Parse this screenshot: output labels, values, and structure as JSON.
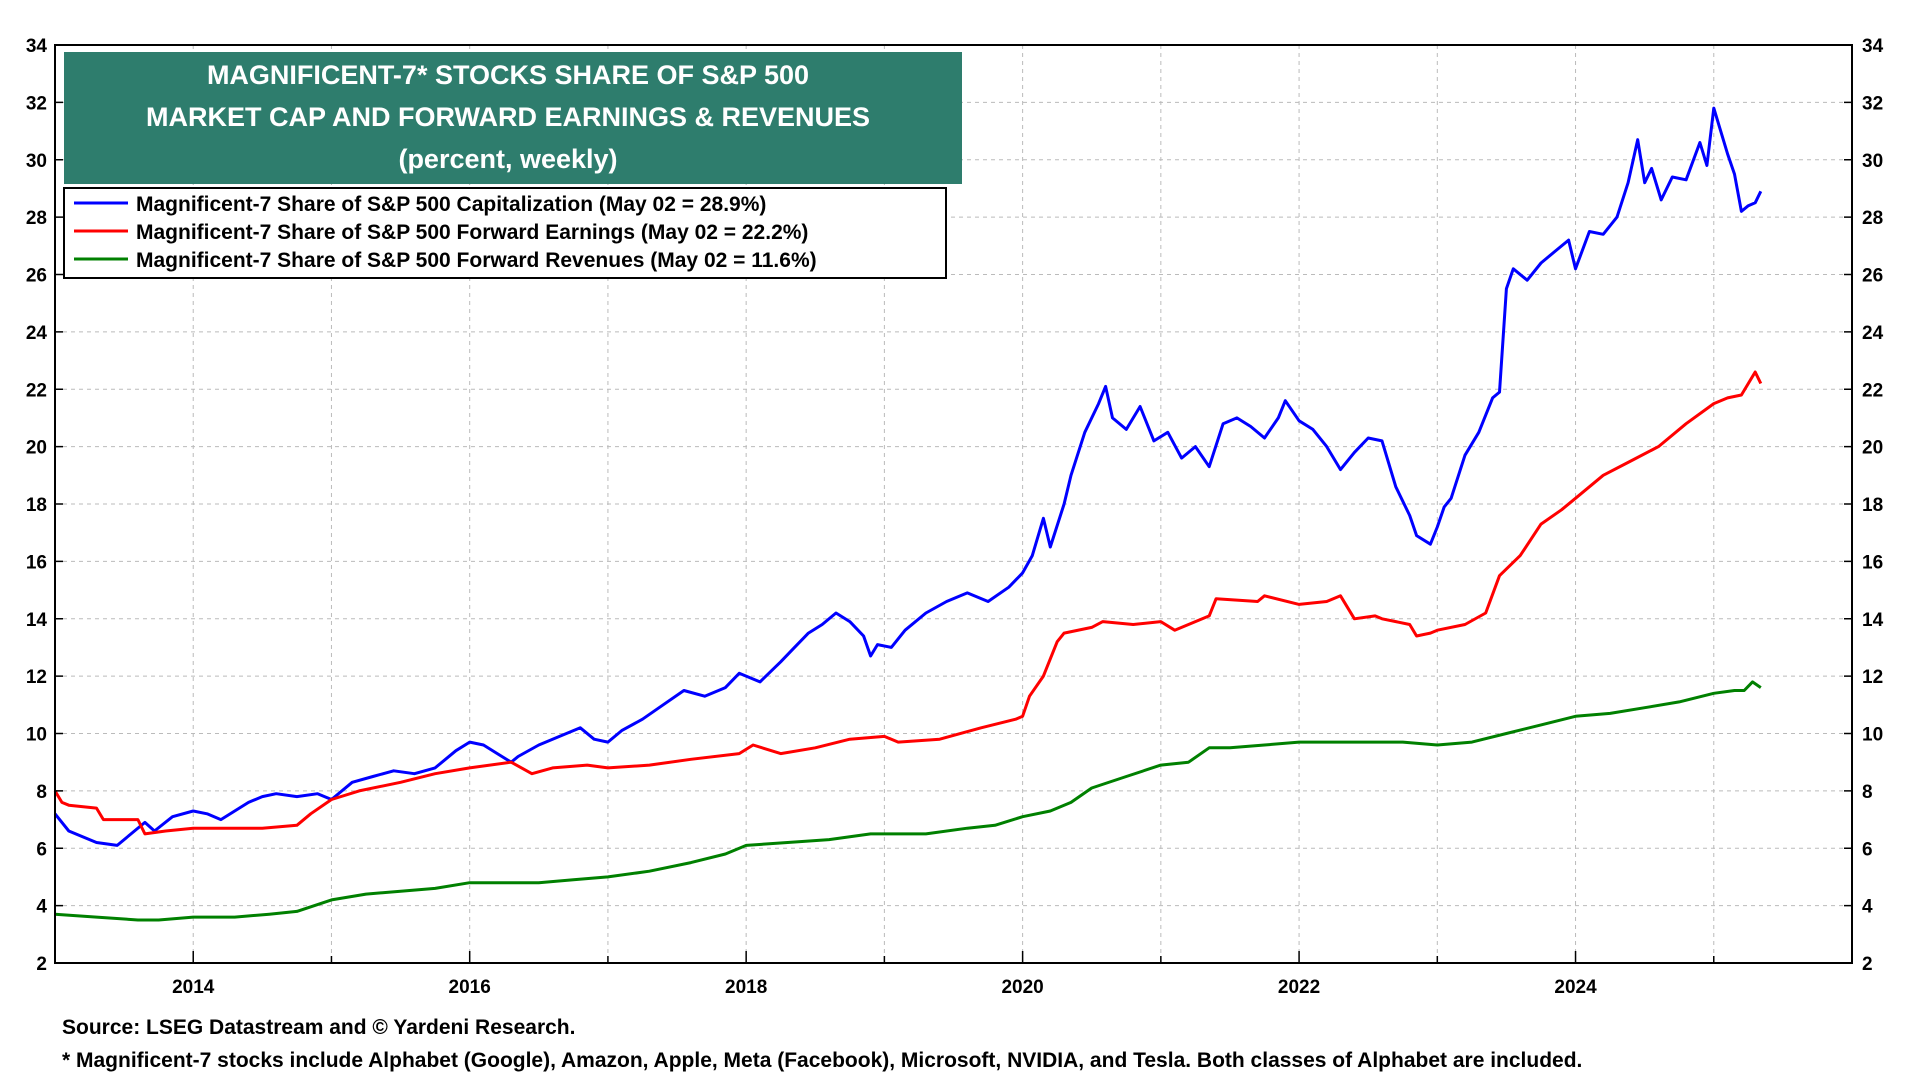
{
  "chart_data": {
    "type": "line",
    "title_lines": [
      "MAGNIFICENT-7* STOCKS SHARE OF S&P 500",
      "MARKET CAP AND FORWARD EARNINGS & REVENUES",
      "(percent, weekly)"
    ],
    "xlabel": "",
    "ylabel": "",
    "xlim": [
      2013.0,
      2026.0
    ],
    "ylim": [
      2,
      34
    ],
    "y_ticks": [
      2,
      4,
      6,
      8,
      10,
      12,
      14,
      16,
      18,
      20,
      22,
      24,
      26,
      28,
      30,
      32,
      34
    ],
    "x_ticks": [
      2014,
      2016,
      2018,
      2020,
      2022,
      2024
    ],
    "grid": true,
    "legend_position": "top-left",
    "series": [
      {
        "name": "Magnificent-7 Share of S&P 500 Capitalization (May 02 = 28.9%)",
        "color": "#0000ff",
        "x": [
          2013.0,
          2013.1,
          2013.2,
          2013.3,
          2013.45,
          2013.55,
          2013.65,
          2013.72,
          2013.85,
          2014.0,
          2014.1,
          2014.2,
          2014.3,
          2014.4,
          2014.5,
          2014.6,
          2014.75,
          2014.9,
          2015.0,
          2015.15,
          2015.3,
          2015.45,
          2015.6,
          2015.75,
          2015.9,
          2016.0,
          2016.1,
          2016.2,
          2016.3,
          2016.35,
          2016.5,
          2016.65,
          2016.8,
          2016.9,
          2017.0,
          2017.1,
          2017.25,
          2017.4,
          2017.55,
          2017.7,
          2017.85,
          2017.95,
          2018.1,
          2018.25,
          2018.35,
          2018.45,
          2018.55,
          2018.65,
          2018.75,
          2018.85,
          2018.9,
          2018.95,
          2019.05,
          2019.15,
          2019.3,
          2019.45,
          2019.6,
          2019.75,
          2019.9,
          2020.0,
          2020.07,
          2020.15,
          2020.2,
          2020.3,
          2020.35,
          2020.45,
          2020.55,
          2020.6,
          2020.65,
          2020.75,
          2020.85,
          2020.95,
          2021.05,
          2021.15,
          2021.25,
          2021.35,
          2021.45,
          2021.55,
          2021.65,
          2021.75,
          2021.85,
          2021.9,
          2022.0,
          2022.1,
          2022.2,
          2022.3,
          2022.4,
          2022.5,
          2022.6,
          2022.7,
          2022.8,
          2022.85,
          2022.95,
          2023.0,
          2023.05,
          2023.1,
          2023.2,
          2023.3,
          2023.4,
          2023.45,
          2023.5,
          2023.55,
          2023.65,
          2023.75,
          2023.85,
          2023.95,
          2024.0,
          2024.1,
          2024.2,
          2024.3,
          2024.38,
          2024.45,
          2024.5,
          2024.55,
          2024.62,
          2024.7,
          2024.8,
          2024.9,
          2024.95,
          2025.0,
          2025.05,
          2025.1,
          2025.15,
          2025.2,
          2025.25,
          2025.3,
          2025.34
        ],
        "values": [
          7.2,
          6.6,
          6.4,
          6.2,
          6.1,
          6.5,
          6.9,
          6.6,
          7.1,
          7.3,
          7.2,
          7.0,
          7.3,
          7.6,
          7.8,
          7.9,
          7.8,
          7.9,
          7.7,
          8.3,
          8.5,
          8.7,
          8.6,
          8.8,
          9.4,
          9.7,
          9.6,
          9.3,
          9.0,
          9.2,
          9.6,
          9.9,
          10.2,
          9.8,
          9.7,
          10.1,
          10.5,
          11.0,
          11.5,
          11.3,
          11.6,
          12.1,
          11.8,
          12.5,
          13.0,
          13.5,
          13.8,
          14.2,
          13.9,
          13.4,
          12.7,
          13.1,
          13.0,
          13.6,
          14.2,
          14.6,
          14.9,
          14.6,
          15.1,
          15.6,
          16.2,
          17.5,
          16.5,
          18.0,
          19.0,
          20.5,
          21.5,
          22.1,
          21.0,
          20.6,
          21.4,
          20.2,
          20.5,
          19.6,
          20.0,
          19.3,
          20.8,
          21.0,
          20.7,
          20.3,
          21.0,
          21.6,
          20.9,
          20.6,
          20.0,
          19.2,
          19.8,
          20.3,
          20.2,
          18.6,
          17.6,
          16.9,
          16.6,
          17.2,
          17.9,
          18.2,
          19.7,
          20.5,
          21.7,
          21.9,
          25.5,
          26.2,
          25.8,
          26.4,
          26.8,
          27.2,
          26.2,
          27.5,
          27.4,
          28.0,
          29.2,
          30.7,
          29.2,
          29.7,
          28.6,
          29.4,
          29.3,
          30.6,
          29.8,
          31.8,
          31.0,
          30.2,
          29.5,
          28.2,
          28.4,
          28.5,
          28.9
        ]
      },
      {
        "name": "Magnificent-7 Share of S&P 500 Forward Earnings (May 02 = 22.2%)",
        "color": "#ff0000",
        "x": [
          2013.0,
          2013.05,
          2013.1,
          2013.3,
          2013.35,
          2013.6,
          2013.65,
          2013.8,
          2014.0,
          2014.25,
          2014.5,
          2014.75,
          2014.85,
          2015.0,
          2015.2,
          2015.5,
          2015.75,
          2016.0,
          2016.3,
          2016.45,
          2016.6,
          2016.85,
          2017.0,
          2017.3,
          2017.6,
          2017.95,
          2018.05,
          2018.25,
          2018.5,
          2018.75,
          2019.0,
          2019.1,
          2019.4,
          2019.7,
          2019.95,
          2020.0,
          2020.05,
          2020.15,
          2020.25,
          2020.3,
          2020.5,
          2020.58,
          2020.8,
          2021.0,
          2021.1,
          2021.35,
          2021.4,
          2021.7,
          2021.75,
          2022.0,
          2022.2,
          2022.3,
          2022.4,
          2022.55,
          2022.6,
          2022.8,
          2022.85,
          2022.95,
          2023.0,
          2023.2,
          2023.35,
          2023.45,
          2023.6,
          2023.75,
          2023.9,
          2024.0,
          2024.2,
          2024.4,
          2024.6,
          2024.8,
          2025.0,
          2025.1,
          2025.2,
          2025.25,
          2025.3,
          2025.34
        ],
        "values": [
          8.0,
          7.6,
          7.5,
          7.4,
          7.0,
          7.0,
          6.5,
          6.6,
          6.7,
          6.7,
          6.7,
          6.8,
          7.2,
          7.7,
          8.0,
          8.3,
          8.6,
          8.8,
          9.0,
          8.6,
          8.8,
          8.9,
          8.8,
          8.9,
          9.1,
          9.3,
          9.6,
          9.3,
          9.5,
          9.8,
          9.9,
          9.7,
          9.8,
          10.2,
          10.5,
          10.6,
          11.3,
          12.0,
          13.2,
          13.5,
          13.7,
          13.9,
          13.8,
          13.9,
          13.6,
          14.1,
          14.7,
          14.6,
          14.8,
          14.5,
          14.6,
          14.8,
          14.0,
          14.1,
          14.0,
          13.8,
          13.4,
          13.5,
          13.6,
          13.8,
          14.2,
          15.5,
          16.2,
          17.3,
          17.8,
          18.2,
          19.0,
          19.5,
          20.0,
          20.8,
          21.5,
          21.7,
          21.8,
          22.2,
          22.6,
          22.2
        ]
      },
      {
        "name": "Magnificent-7 Share of S&P 500 Forward Revenues (May 02 = 11.6%)",
        "color": "#008000",
        "x": [
          2013.0,
          2013.3,
          2013.6,
          2013.75,
          2014.0,
          2014.3,
          2014.55,
          2014.75,
          2015.0,
          2015.25,
          2015.5,
          2015.75,
          2016.0,
          2016.5,
          2016.75,
          2017.0,
          2017.3,
          2017.6,
          2017.85,
          2018.0,
          2018.3,
          2018.6,
          2018.9,
          2019.0,
          2019.3,
          2019.6,
          2019.8,
          2020.0,
          2020.2,
          2020.35,
          2020.5,
          2020.75,
          2021.0,
          2021.2,
          2021.35,
          2021.5,
          2021.75,
          2022.0,
          2022.25,
          2022.5,
          2022.75,
          2023.0,
          2023.25,
          2023.5,
          2023.75,
          2024.0,
          2024.25,
          2024.5,
          2024.75,
          2025.0,
          2025.15,
          2025.22,
          2025.28,
          2025.34
        ],
        "values": [
          3.7,
          3.6,
          3.5,
          3.5,
          3.6,
          3.6,
          3.7,
          3.8,
          4.2,
          4.4,
          4.5,
          4.6,
          4.8,
          4.8,
          4.9,
          5.0,
          5.2,
          5.5,
          5.8,
          6.1,
          6.2,
          6.3,
          6.5,
          6.5,
          6.5,
          6.7,
          6.8,
          7.1,
          7.3,
          7.6,
          8.1,
          8.5,
          8.9,
          9.0,
          9.5,
          9.5,
          9.6,
          9.7,
          9.7,
          9.7,
          9.7,
          9.6,
          9.7,
          10.0,
          10.3,
          10.6,
          10.7,
          10.9,
          11.1,
          11.4,
          11.5,
          11.5,
          11.8,
          11.6
        ]
      }
    ]
  },
  "footnotes": {
    "source": "Source: LSEG Datastream and © Yardeni Research.",
    "note": "* Magnificent-7 stocks include Alphabet (Google), Amazon, Apple, Meta (Facebook), Microsoft, NVIDIA, and Tesla. Both classes of Alphabet are included."
  },
  "colors": {
    "title_box": "#2e7d6d",
    "grid": "#bbbbbb"
  }
}
